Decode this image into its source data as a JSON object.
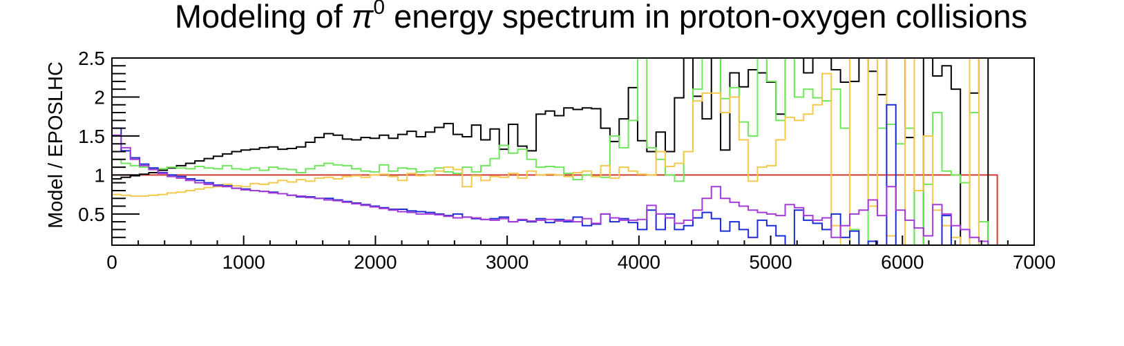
{
  "chart_data": {
    "type": "line",
    "step": true,
    "title_parts": {
      "before": "Modeling of ",
      "symbol": "π",
      "superscript": "0",
      "after": " energy spectrum in proton-oxygen collisions"
    },
    "xlabel": "",
    "ylabel": "Model / EPOSLHC",
    "xlim": [
      0,
      7000
    ],
    "ylim": [
      0.1,
      2.5
    ],
    "x_ticks": [
      0,
      1000,
      2000,
      3000,
      4000,
      5000,
      6000,
      7000
    ],
    "x_tick_labels": [
      "0",
      "1000",
      "2000",
      "3000",
      "4000",
      "5000",
      "6000",
      "7000"
    ],
    "y_ticks": [
      0.5,
      1,
      1.5,
      2,
      2.5
    ],
    "y_tick_labels": [
      "0.5",
      "1",
      "1.5",
      "2",
      "2.5"
    ],
    "grid": false,
    "legend": "none",
    "bin_start": 0,
    "bin_width": 70,
    "series": [
      {
        "color": "#d03a2e",
        "values": [
          1,
          1,
          1,
          1,
          1,
          1,
          1,
          1,
          1,
          1,
          1,
          1,
          1,
          1,
          1,
          1,
          1,
          1,
          1,
          1,
          1,
          1,
          1,
          1,
          1,
          1,
          1,
          1,
          1,
          1,
          1,
          1,
          1,
          1,
          1,
          1,
          1,
          1,
          1,
          1,
          1,
          1,
          1,
          1,
          1,
          1,
          1,
          1,
          1,
          1,
          1,
          1,
          1,
          1,
          1,
          1,
          1,
          1,
          1,
          1,
          1,
          1,
          1,
          1,
          1,
          1,
          1,
          1,
          1,
          1,
          1,
          1,
          1,
          1,
          1,
          1,
          1,
          1,
          1,
          1,
          1,
          1,
          1,
          1,
          1,
          1,
          1,
          1,
          1,
          1,
          1,
          1,
          1,
          1,
          1,
          1
        ]
      },
      {
        "color": "#000000",
        "values": [
          0.95,
          0.97,
          0.99,
          1.01,
          1.03,
          1.06,
          1.09,
          1.12,
          1.15,
          1.18,
          1.21,
          1.24,
          1.27,
          1.3,
          1.32,
          1.33,
          1.35,
          1.36,
          1.33,
          1.34,
          1.36,
          1.42,
          1.48,
          1.53,
          1.51,
          1.46,
          1.45,
          1.48,
          1.47,
          1.51,
          1.47,
          1.52,
          1.56,
          1.49,
          1.55,
          1.61,
          1.66,
          1.52,
          1.49,
          1.64,
          1.45,
          1.59,
          1.33,
          1.65,
          1.37,
          1.31,
          1.78,
          1.82,
          1.76,
          1.86,
          1.84,
          1.86,
          1.85,
          1.6,
          1.43,
          1.72,
          2.12,
          1.44,
          1.3,
          1.55,
          1.3,
          1.99,
          2.71,
          2.01,
          1.72,
          2.91,
          1.32,
          2.31,
          2.13,
          2.35,
          2.31,
          2.19,
          1.78,
          2.99,
          2.9,
          2.31,
          2.52,
          3.1,
          2.35,
          2.19,
          2.2,
          2.51,
          2.33,
          2.03,
          2.53,
          3.05,
          1.48,
          0.05,
          3.1,
          2.27,
          2.4,
          2.1,
          0.05,
          2.05,
          3.2,
          0.05
        ]
      },
      {
        "color": "#6ee55a",
        "values": [
          1.2,
          1.15,
          1.12,
          1.1,
          1.09,
          1.08,
          1.1,
          1.09,
          1.08,
          1.11,
          1.09,
          1.08,
          1.12,
          1.08,
          1.07,
          1.09,
          1.06,
          1.1,
          1.08,
          1.07,
          1.03,
          1.08,
          1.12,
          1.15,
          1.13,
          1.12,
          1.08,
          1.05,
          1.04,
          1.13,
          1.05,
          1.09,
          1.08,
          1.04,
          1.05,
          1.09,
          1.04,
          1.02,
          1.1,
          1.04,
          1.12,
          1.21,
          1.38,
          1.28,
          1.33,
          1.2,
          1.1,
          1.11,
          1.1,
          1.02,
          0.94,
          1.0,
          0.98,
          0.97,
          1.5,
          1.35,
          1.7,
          2.5,
          1.35,
          1.2,
          1.0,
          0.92,
          1.3,
          2.1,
          2.5,
          3.0,
          1.98,
          2.12,
          1.68,
          1.5,
          3.1,
          2.2,
          1.7,
          3.0,
          2.0,
          2.1,
          1.99,
          1.95,
          2.1,
          1.6,
          0.3,
          0.05,
          3.3,
          1.6,
          1.65,
          1.4,
          1.6,
          0.05,
          0.88,
          1.8,
          1.05,
          1.0,
          0.9,
          1.8,
          0.4,
          0.05
        ]
      },
      {
        "color": "#f3c84c",
        "values": [
          0.75,
          0.74,
          0.73,
          0.73,
          0.74,
          0.75,
          0.77,
          0.78,
          0.8,
          0.82,
          0.84,
          0.85,
          0.88,
          0.86,
          0.85,
          0.89,
          0.88,
          0.9,
          0.93,
          0.91,
          0.94,
          0.92,
          0.96,
          0.97,
          0.95,
          0.98,
          0.99,
          0.97,
          1.0,
          1.01,
          0.98,
          0.93,
          1.02,
          0.99,
          1.0,
          1.05,
          1.1,
          1.07,
          0.85,
          0.99,
          0.93,
          0.98,
          0.97,
          1.02,
          0.96,
          1.05,
          1.0,
          1.01,
          1.0,
          0.98,
          1.03,
          1.05,
          0.98,
          1.12,
          0.96,
          1.1,
          1.05,
          1.01,
          1.0,
          1.3,
          1.11,
          1.15,
          1.3,
          1.95,
          2.05,
          2.05,
          1.8,
          2.0,
          1.45,
          0.92,
          1.1,
          1.12,
          1.45,
          1.74,
          1.7,
          1.78,
          1.9,
          2.3,
          0.35,
          0.05,
          2.8,
          2.5,
          0.6,
          3.0,
          0.22,
          0.05,
          2.95,
          0.8,
          1.5,
          0.55,
          0.35,
          0.2,
          0.05,
          3.0,
          0.05,
          0.05
        ]
      },
      {
        "color": "#1a2ad6",
        "values": [
          1.6,
          1.31,
          1.22,
          1.14,
          1.09,
          1.03,
          1.0,
          0.98,
          0.95,
          0.93,
          0.9,
          0.87,
          0.86,
          0.83,
          0.82,
          0.8,
          0.79,
          0.78,
          0.76,
          0.74,
          0.72,
          0.72,
          0.7,
          0.7,
          0.68,
          0.66,
          0.64,
          0.62,
          0.6,
          0.58,
          0.56,
          0.56,
          0.54,
          0.53,
          0.52,
          0.5,
          0.48,
          0.5,
          0.46,
          0.44,
          0.43,
          0.44,
          0.46,
          0.4,
          0.42,
          0.4,
          0.44,
          0.39,
          0.43,
          0.4,
          0.46,
          0.35,
          0.37,
          0.5,
          0.4,
          0.44,
          0.39,
          0.3,
          0.55,
          0.3,
          0.5,
          0.3,
          0.35,
          0.45,
          0.52,
          0.44,
          0.28,
          0.4,
          0.3,
          0.2,
          0.42,
          0.35,
          0.22,
          0.05,
          0.55,
          0.42,
          0.38,
          0.3,
          0.5,
          0.2,
          0.28,
          0.1,
          0.15,
          0.05,
          1.9,
          0.05,
          0.05,
          0.05,
          0.05,
          0.05,
          0.48,
          0.05,
          0.05,
          0.05,
          0.05,
          0.05
        ]
      },
      {
        "color": "#a43ad8",
        "values": [
          1.51,
          1.35,
          1.2,
          1.12,
          1.07,
          1.02,
          0.98,
          0.96,
          0.93,
          0.9,
          0.88,
          0.86,
          0.85,
          0.83,
          0.81,
          0.8,
          0.79,
          0.77,
          0.76,
          0.74,
          0.73,
          0.71,
          0.7,
          0.68,
          0.67,
          0.65,
          0.63,
          0.61,
          0.59,
          0.57,
          0.55,
          0.53,
          0.52,
          0.5,
          0.5,
          0.49,
          0.47,
          0.45,
          0.46,
          0.45,
          0.43,
          0.42,
          0.44,
          0.4,
          0.43,
          0.41,
          0.42,
          0.43,
          0.41,
          0.42,
          0.4,
          0.44,
          0.38,
          0.5,
          0.45,
          0.42,
          0.42,
          0.43,
          0.61,
          0.5,
          0.45,
          0.38,
          0.42,
          0.55,
          0.7,
          0.85,
          0.7,
          0.65,
          0.6,
          0.55,
          0.52,
          0.5,
          0.48,
          0.62,
          0.58,
          0.48,
          0.42,
          0.45,
          0.2,
          0.35,
          0.5,
          0.55,
          0.68,
          0.48,
          0.85,
          0.55,
          0.42,
          0.32,
          0.22,
          0.62,
          0.5,
          0.35,
          0.3,
          0.2,
          0.15,
          0.05
        ]
      }
    ]
  }
}
